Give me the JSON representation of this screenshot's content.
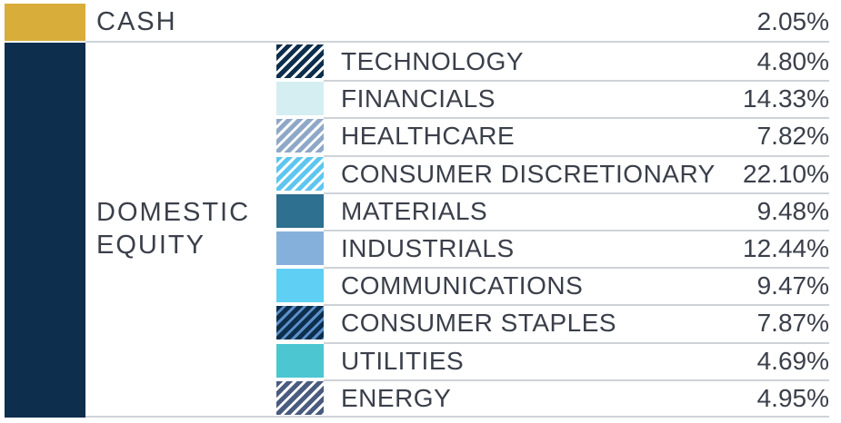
{
  "chart_data": {
    "type": "table",
    "groups": [
      {
        "name": "CASH",
        "color": "#d9ad3a",
        "value": "2.05%",
        "sectors": []
      },
      {
        "name": "DOMESTIC EQUITY",
        "name_lines": [
          "DOMESTIC",
          "EQUITY"
        ],
        "color": "#0d2e4c",
        "sectors": [
          {
            "name": "TECHNOLOGY",
            "value": "4.80%",
            "swatch": {
              "fill": "#0d2e4c",
              "stripe": "#ffffff",
              "pattern": "striped"
            }
          },
          {
            "name": "FINANCIALS",
            "value": "14.33%",
            "swatch": {
              "fill": "#d5eef1",
              "pattern": "solid"
            }
          },
          {
            "name": "HEALTHCARE",
            "value": "7.82%",
            "swatch": {
              "fill": "#8fa8c7",
              "stripe": "#ffffff",
              "pattern": "striped"
            }
          },
          {
            "name": "CONSUMER DISCRETIONARY",
            "value": "22.10%",
            "swatch": {
              "fill": "#5ec6ef",
              "stripe": "#ffffff",
              "pattern": "striped"
            }
          },
          {
            "name": "MATERIALS",
            "value": "9.48%",
            "swatch": {
              "fill": "#2d7090",
              "pattern": "solid"
            }
          },
          {
            "name": "INDUSTRIALS",
            "value": "12.44%",
            "swatch": {
              "fill": "#86b0dc",
              "pattern": "solid"
            }
          },
          {
            "name": "COMMUNICATIONS",
            "value": "9.47%",
            "swatch": {
              "fill": "#5fd0f3",
              "pattern": "solid"
            }
          },
          {
            "name": "CONSUMER STAPLES",
            "value": "7.87%",
            "swatch": {
              "fill": "#0d2e4c",
              "stripe": "#5b8fc9",
              "pattern": "striped"
            }
          },
          {
            "name": "UTILITIES",
            "value": "4.69%",
            "swatch": {
              "fill": "#4cc6d1",
              "pattern": "solid"
            }
          },
          {
            "name": "ENERGY",
            "value": "4.95%",
            "swatch": {
              "fill": "#4a5b80",
              "stripe": "#ffffff",
              "pattern": "striped"
            }
          }
        ]
      }
    ]
  }
}
